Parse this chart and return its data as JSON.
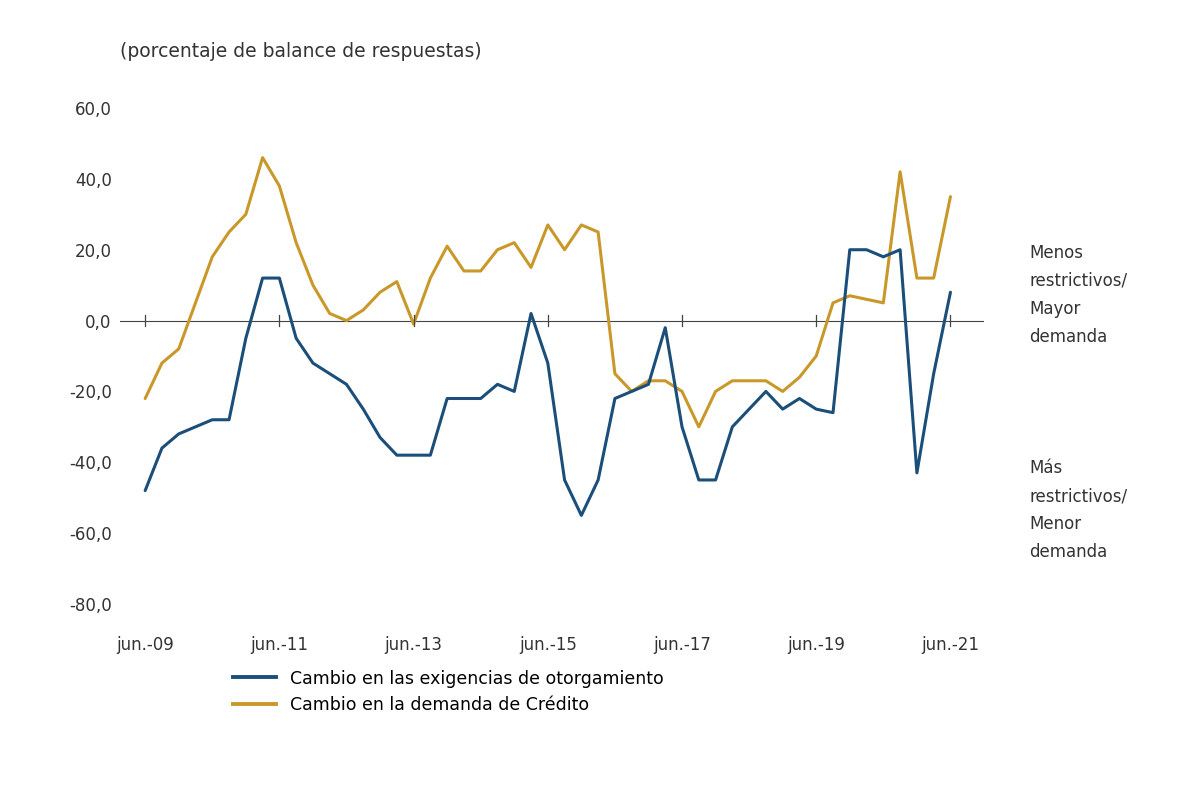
{
  "title": "(porcentaje de balance de respuestas)",
  "background_color": "#ffffff",
  "line1_color": "#1b4f7a",
  "line2_color": "#c9982a",
  "line1_label": "Cambio en las exigencias de otorgamiento",
  "line2_label": "Cambio en la demanda de Crédito",
  "annotation_upper": "Menos\nrestrictivos/\nMayor\ndemanda",
  "annotation_lower": "Más\nrestrictivos/\nMenor\ndemanda",
  "xtick_labels": [
    "jun.-09",
    "jun.-11",
    "jun.-13",
    "jun.-15",
    "jun.-17",
    "jun.-19",
    "jun.-21"
  ],
  "xtick_positions": [
    0,
    8,
    16,
    24,
    32,
    40,
    48
  ],
  "yticks": [
    -80,
    -60,
    -40,
    -20,
    0,
    20,
    40,
    60
  ],
  "ytick_labels": [
    "-80,0",
    "-60,0",
    "-40,0",
    "-20,0",
    "0,0",
    "20,0",
    "40,0",
    "60,0"
  ],
  "ylim": [
    -85,
    68
  ],
  "exig": [
    -48,
    -36,
    -32,
    -30,
    -28,
    -28,
    -5,
    12,
    12,
    -5,
    -12,
    -15,
    -18,
    -25,
    -33,
    -38,
    -38,
    -38,
    -22,
    -22,
    -22,
    -18,
    -20,
    2,
    -12,
    -45,
    -55,
    -45,
    -22,
    -20,
    -18,
    -2,
    -30,
    -45,
    -45,
    -30,
    -25,
    -20,
    -25,
    -22,
    -25,
    -26,
    20,
    20,
    18,
    20,
    -43,
    -15,
    8
  ],
  "dem": [
    -22,
    -12,
    -8,
    5,
    18,
    25,
    30,
    46,
    38,
    22,
    10,
    2,
    0,
    3,
    8,
    11,
    -1,
    12,
    21,
    14,
    14,
    20,
    22,
    15,
    27,
    20,
    27,
    25,
    -15,
    -20,
    -17,
    -17,
    -20,
    -30,
    -20,
    -17,
    -17,
    -17,
    -20,
    -16,
    -10,
    5,
    7,
    6,
    5,
    42,
    12,
    12,
    35
  ]
}
